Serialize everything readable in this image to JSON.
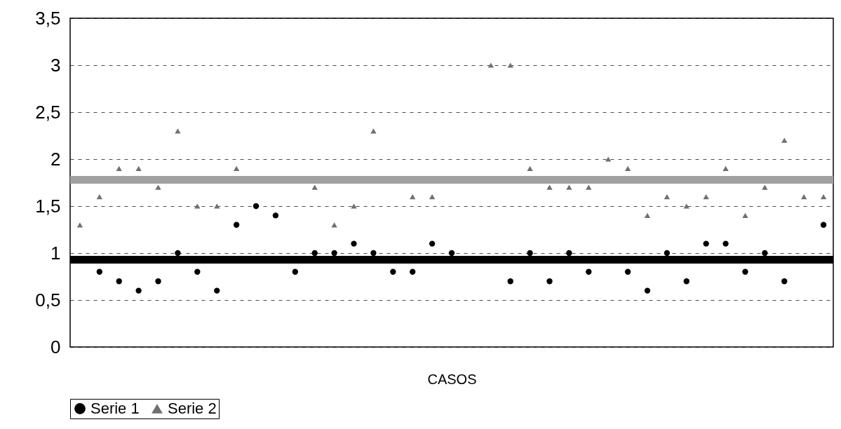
{
  "chart_data": {
    "type": "scatter",
    "xlabel": "CASOS",
    "categories": [
      null,
      null,
      null,
      null,
      null,
      null,
      null,
      null,
      null,
      null,
      null,
      null,
      null,
      null,
      null,
      null,
      null,
      null,
      null,
      null,
      null,
      null,
      null,
      null,
      null,
      null,
      null,
      null,
      null,
      null,
      null,
      null,
      null,
      null,
      null,
      null,
      null,
      null,
      null
    ],
    "series": [
      {
        "name": "Serie 1",
        "color": "#000000",
        "marker": "circle",
        "values": [
          null,
          0.8,
          0.7,
          0.6,
          0.7,
          1.0,
          0.8,
          0.6,
          1.3,
          1.5,
          1.4,
          0.8,
          1.0,
          1.0,
          1.1,
          1.0,
          0.8,
          0.8,
          1.1,
          1.0,
          null,
          null,
          0.7,
          1.0,
          0.7,
          1.0,
          0.8,
          null,
          0.8,
          0.6,
          1.0,
          0.7,
          1.1,
          1.1,
          0.8,
          1.0,
          0.7,
          null,
          1.3
        ]
      },
      {
        "name": "Serie 2",
        "color": "#707070",
        "marker": "triangle",
        "values": [
          1.3,
          1.6,
          1.9,
          1.9,
          1.7,
          2.3,
          1.5,
          1.5,
          1.9,
          null,
          null,
          null,
          1.7,
          1.3,
          1.5,
          2.3,
          null,
          1.6,
          1.6,
          null,
          null,
          3.0,
          3.0,
          1.9,
          1.7,
          1.7,
          1.7,
          2.0,
          1.9,
          1.4,
          1.6,
          1.5,
          1.6,
          1.9,
          1.4,
          1.7,
          2.2,
          1.6,
          1.6
        ]
      }
    ],
    "ref_lines": [
      {
        "axis": "y",
        "value": 0.93,
        "color": "#000000"
      },
      {
        "axis": "y",
        "value": 1.78,
        "color": "#a0a0a0"
      }
    ],
    "ylim": [
      0,
      3.5
    ],
    "yticks": [
      0,
      {
        "value": 0.5,
        "label": "0,5"
      },
      1,
      {
        "value": 1.5,
        "label": "1,5"
      },
      2,
      {
        "value": 2.5,
        "label": "2,5"
      },
      3,
      {
        "value": 3.5,
        "label": "3,5"
      }
    ],
    "grid": "y",
    "legend": "bottom",
    "tick_labels": "y"
  }
}
